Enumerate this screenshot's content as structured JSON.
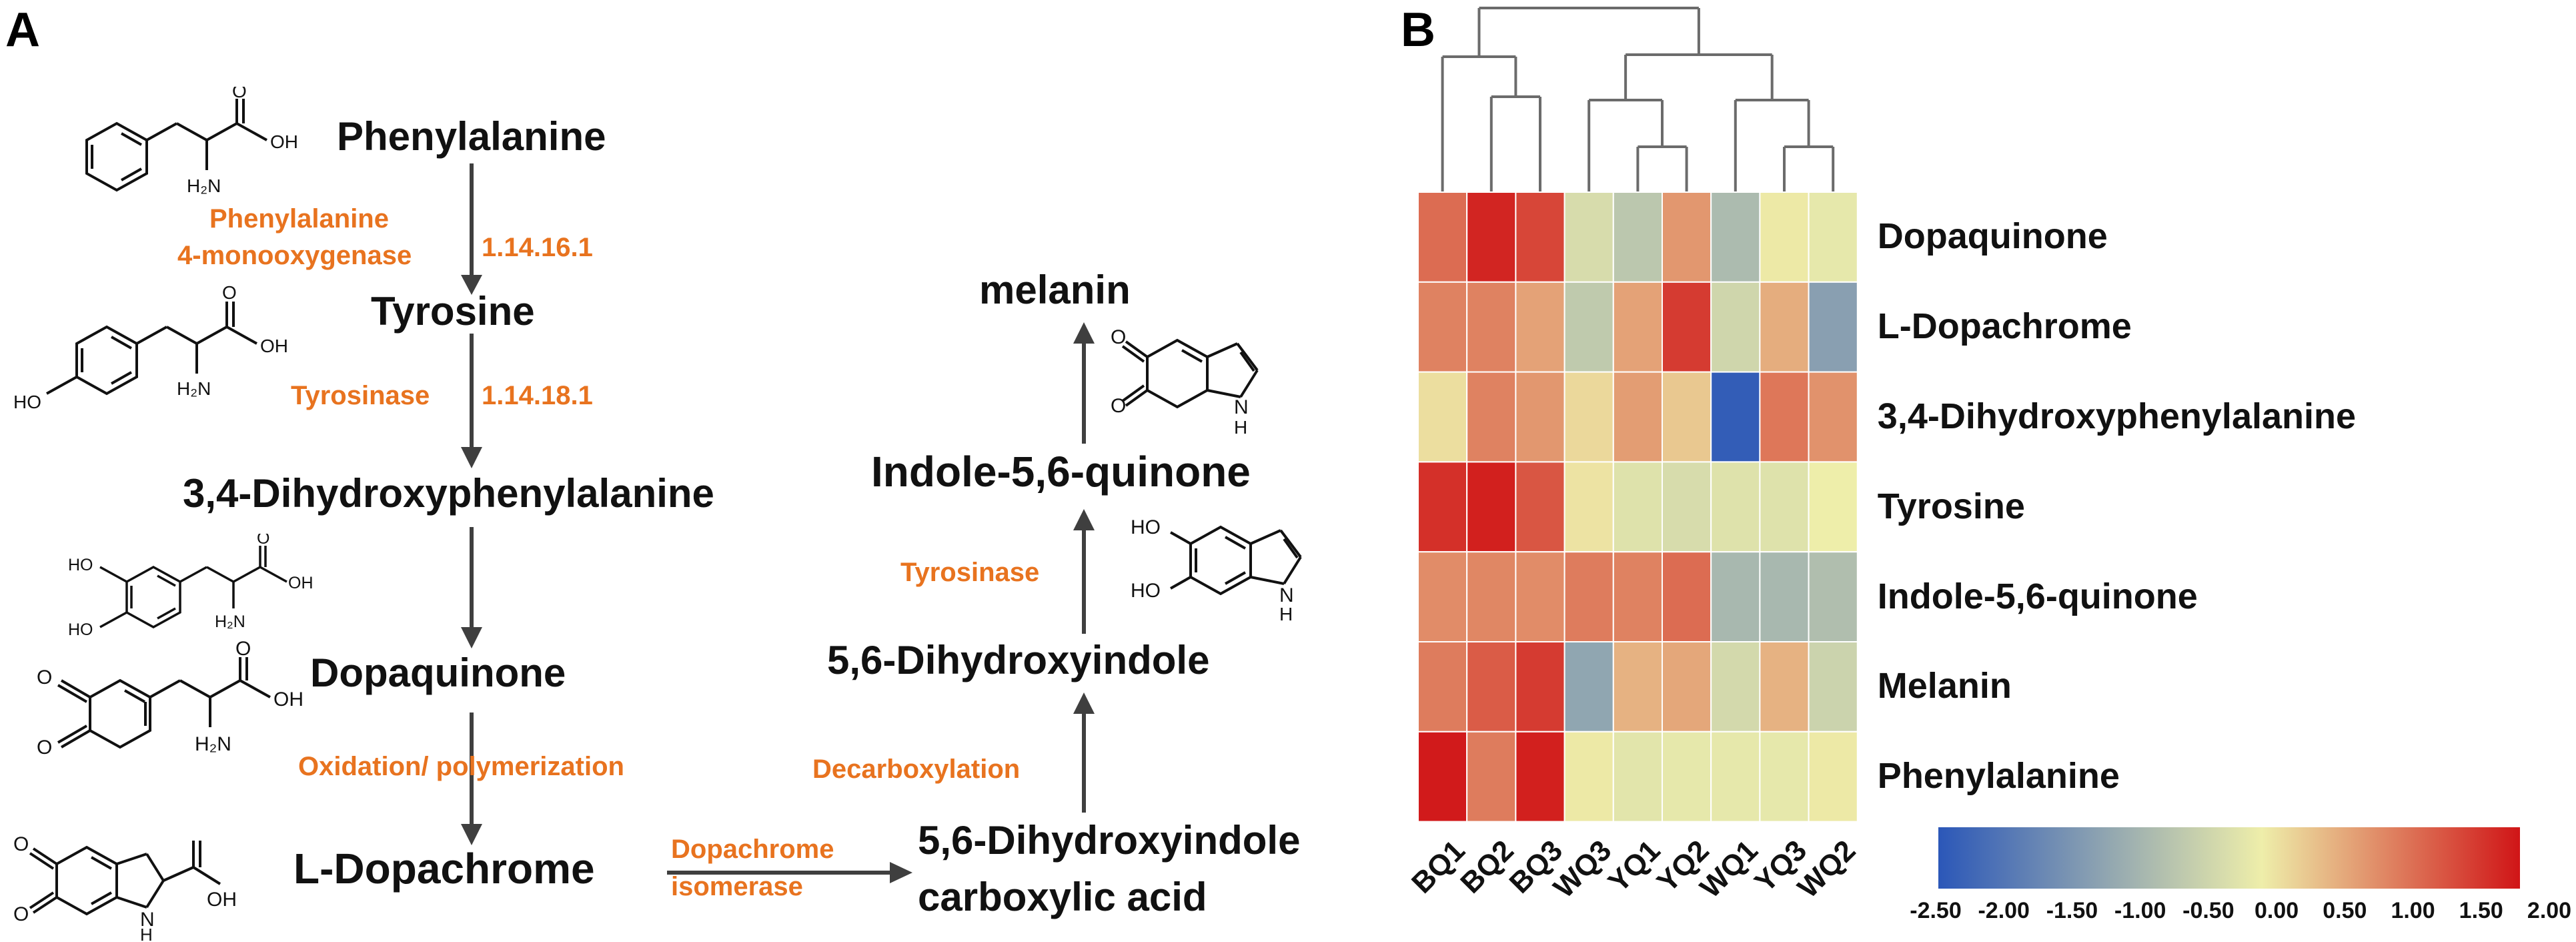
{
  "panel_a": {
    "letter": "A",
    "nodes": {
      "phenylalanine": "Phenylalanine",
      "tyrosine": "Tyrosine",
      "dopa": "3,4-Dihydroxyphenylalanine",
      "dopaquinone": "Dopaquinone",
      "dopachrome": "L-Dopachrome",
      "dhica_1": "5,6-Dihydroxyindole",
      "dhica_2": "carboxylic acid",
      "dhi": "5,6-Dihydroxyindole",
      "indolequinone": "Indole-5,6-quinone",
      "melanin": "melanin"
    },
    "enzymes": {
      "pah_1": "Phenylalanine",
      "pah_2": "4-monooxygenase",
      "pah_ec": "1.14.16.1",
      "tyr1": "Tyrosinase",
      "tyr1_ec": "1.14.18.1",
      "oxidation": "Oxidation/ polymerization",
      "isomerase_1": "Dopachrome",
      "isomerase_2": "isomerase",
      "decarboxylation": "Decarboxylation",
      "tyr2": "Tyrosinase"
    },
    "structure_atoms": {
      "oh": "OH",
      "ho": "HO",
      "o": "O",
      "nh2": "H₂N",
      "nh": "N",
      "h": "H"
    },
    "colors": {
      "enzyme": "#E8731F",
      "arrow": "#3f3f3f"
    }
  },
  "chart_data": {
    "type": "heatmap",
    "panel_letter": "B",
    "columns": [
      "BQ1",
      "BQ2",
      "BQ3",
      "WQ3",
      "YQ1",
      "YQ2",
      "WQ1",
      "YQ3",
      "WQ2"
    ],
    "rows": [
      "Dopaquinone",
      "L-Dopachrome",
      "3,4-Dihydroxyphenylalanine",
      "Tyrosine",
      "Indole-5,6-quinone",
      "Melanin",
      "Phenylalanine"
    ],
    "values": [
      [
        1.2,
        1.85,
        1.55,
        -0.3,
        -0.65,
        0.8,
        -0.85,
        0.05,
        -0.1
      ],
      [
        1.0,
        1.0,
        0.7,
        -0.6,
        0.7,
        1.65,
        -0.4,
        0.6,
        -1.3
      ],
      [
        0.15,
        1.0,
        0.8,
        0.2,
        0.75,
        0.35,
        -2.4,
        1.1,
        0.85
      ],
      [
        1.75,
        1.9,
        1.4,
        0.1,
        -0.2,
        -0.3,
        -0.2,
        -0.2,
        0.0
      ],
      [
        0.9,
        0.95,
        0.9,
        1.05,
        1.0,
        1.2,
        -0.9,
        -0.9,
        -0.8
      ],
      [
        1.05,
        1.35,
        1.65,
        -1.2,
        0.55,
        0.65,
        -0.35,
        0.55,
        -0.45
      ],
      [
        1.95,
        1.05,
        1.9,
        0.05,
        -0.15,
        -0.1,
        -0.1,
        -0.1,
        0.05
      ]
    ],
    "colorbar": {
      "min": -2.5,
      "max": 2.0,
      "ticks": [
        "-2.50",
        "-2.00",
        "-1.50",
        "-1.00",
        "-0.50",
        "0.00",
        "0.50",
        "1.00",
        "1.50",
        "2.00"
      ],
      "colors": [
        "#2b57b8",
        "#eeeeaa",
        "#d01517"
      ]
    },
    "dendrogram_leaf_order": [
      "BQ1",
      "BQ2",
      "BQ3",
      "WQ3",
      "YQ1",
      "YQ2",
      "WQ1",
      "YQ3",
      "WQ2"
    ]
  }
}
